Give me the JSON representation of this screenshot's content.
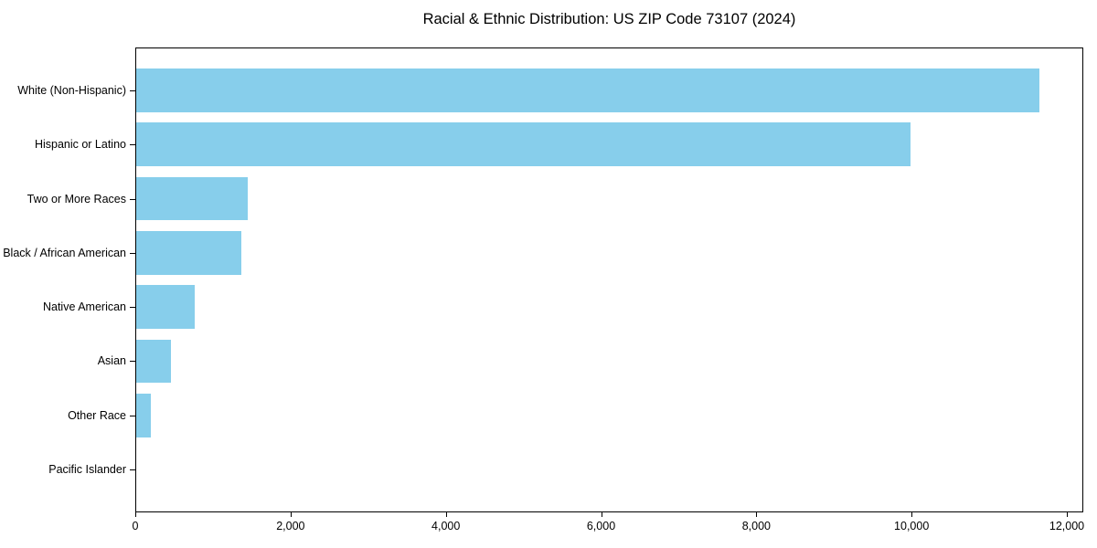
{
  "chart_data": {
    "type": "bar",
    "orientation": "horizontal",
    "title": "Racial & Ethnic Distribution: US ZIP Code 73107 (2024)",
    "xlabel": "",
    "ylabel": "",
    "categories": [
      "White (Non-Hispanic)",
      "Hispanic or Latino",
      "Two or More Races",
      "Black / African American",
      "Native American",
      "Asian",
      "Other Race",
      "Pacific Islander"
    ],
    "values": [
      11640,
      9980,
      1440,
      1350,
      750,
      450,
      190,
      0
    ],
    "x_ticks": [
      0,
      2000,
      4000,
      6000,
      8000,
      10000,
      12000
    ],
    "x_tick_labels": [
      "0",
      "2,000",
      "4,000",
      "6,000",
      "8,000",
      "10,000",
      "12,000"
    ],
    "xlim": [
      0,
      12212
    ],
    "grid": false,
    "legend": null,
    "bar_color": "#87CEEB"
  },
  "colors": {
    "bar": "#87CEEB",
    "text": "#000000",
    "spine": "#000000",
    "background": "#ffffff"
  }
}
